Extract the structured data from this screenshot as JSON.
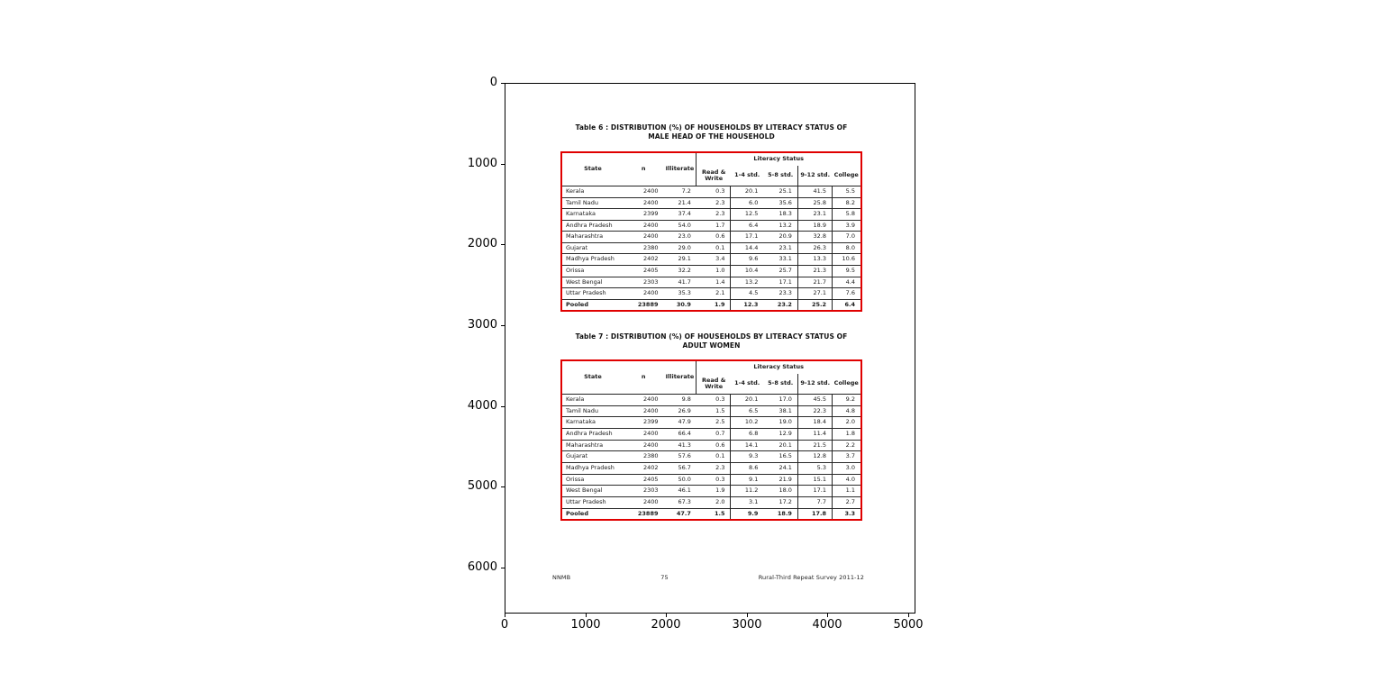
{
  "figure": {
    "x_ticks": [
      "0",
      "1000",
      "2000",
      "3000",
      "4000",
      "5000"
    ],
    "y_ticks": [
      "0",
      "1000",
      "2000",
      "3000",
      "4000",
      "5000",
      "6000"
    ],
    "table_border_color": "#e00000",
    "ink_color": "#1a1a1a"
  },
  "page": {
    "footer": {
      "left": "NNMB",
      "page_number": "75",
      "right": "Rural-Third Repeat Survey 2011-12"
    }
  },
  "tables": [
    {
      "title_line1": "Table 6 : DISTRIBUTION (%) OF HOUSEHOLDS BY LITERACY STATUS OF",
      "title_line2": "MALE HEAD OF THE HOUSEHOLD",
      "group_header": "Literacy Status",
      "columns": [
        "State",
        "n",
        "Illiterate",
        "Read & Write",
        "1-4 std.",
        "5-8 std.",
        "9-12 std.",
        "College"
      ],
      "rows": [
        {
          "cells": [
            "Kerala",
            "2400",
            "7.2",
            "0.3",
            "20.1",
            "25.1",
            "41.5",
            "5.5"
          ]
        },
        {
          "cells": [
            "Tamil Nadu",
            "2400",
            "21.4",
            "2.3",
            "6.0",
            "35.6",
            "25.8",
            "8.2"
          ]
        },
        {
          "cells": [
            "Karnataka",
            "2399",
            "37.4",
            "2.3",
            "12.5",
            "18.3",
            "23.1",
            "5.8"
          ]
        },
        {
          "cells": [
            "Andhra Pradesh",
            "2400",
            "54.0",
            "1.7",
            "6.4",
            "13.2",
            "18.9",
            "3.9"
          ]
        },
        {
          "cells": [
            "Maharashtra",
            "2400",
            "23.0",
            "0.6",
            "17.1",
            "20.9",
            "32.8",
            "7.0"
          ]
        },
        {
          "cells": [
            "Gujarat",
            "2380",
            "29.0",
            "0.1",
            "14.4",
            "23.1",
            "26.3",
            "8.0"
          ]
        },
        {
          "cells": [
            "Madhya Pradesh",
            "2402",
            "29.1",
            "3.4",
            "9.6",
            "33.1",
            "13.3",
            "10.6"
          ]
        },
        {
          "cells": [
            "Orissa",
            "2405",
            "32.2",
            "1.0",
            "10.4",
            "25.7",
            "21.3",
            "9.5"
          ]
        },
        {
          "cells": [
            "West Bengal",
            "2303",
            "41.7",
            "1.4",
            "13.2",
            "17.1",
            "21.7",
            "4.4"
          ]
        },
        {
          "cells": [
            "Uttar Pradesh",
            "2400",
            "35.3",
            "2.1",
            "4.5",
            "23.3",
            "27.1",
            "7.6"
          ]
        },
        {
          "cells": [
            "Pooled",
            "23889",
            "30.9",
            "1.9",
            "12.3",
            "23.2",
            "25.2",
            "6.4"
          ],
          "pooled": true
        }
      ]
    },
    {
      "title_line1": "Table 7 : DISTRIBUTION (%) OF HOUSEHOLDS BY LITERACY STATUS OF",
      "title_line2": "ADULT WOMEN",
      "group_header": "Literacy Status",
      "columns": [
        "State",
        "n",
        "Illiterate",
        "Read & Write",
        "1-4 std.",
        "5-8 std.",
        "9-12 std.",
        "College"
      ],
      "rows": [
        {
          "cells": [
            "Kerala",
            "2400",
            "9.8",
            "0.3",
            "20.1",
            "17.0",
            "45.5",
            "9.2"
          ]
        },
        {
          "cells": [
            "Tamil Nadu",
            "2400",
            "26.9",
            "1.5",
            "6.5",
            "38.1",
            "22.3",
            "4.8"
          ]
        },
        {
          "cells": [
            "Karnataka",
            "2399",
            "47.9",
            "2.5",
            "10.2",
            "19.0",
            "18.4",
            "2.0"
          ]
        },
        {
          "cells": [
            "Andhra Pradesh",
            "2400",
            "66.4",
            "0.7",
            "6.8",
            "12.9",
            "11.4",
            "1.8"
          ]
        },
        {
          "cells": [
            "Maharashtra",
            "2400",
            "41.3",
            "0.6",
            "14.1",
            "20.1",
            "21.5",
            "2.2"
          ]
        },
        {
          "cells": [
            "Gujarat",
            "2380",
            "57.6",
            "0.1",
            "9.3",
            "16.5",
            "12.8",
            "3.7"
          ]
        },
        {
          "cells": [
            "Madhya Pradesh",
            "2402",
            "56.7",
            "2.3",
            "8.6",
            "24.1",
            "5.3",
            "3.0"
          ]
        },
        {
          "cells": [
            "Orissa",
            "2405",
            "50.0",
            "0.3",
            "9.1",
            "21.9",
            "15.1",
            "4.0"
          ]
        },
        {
          "cells": [
            "West Bengal",
            "2303",
            "46.1",
            "1.9",
            "11.2",
            "18.0",
            "17.1",
            "1.1"
          ]
        },
        {
          "cells": [
            "Uttar Pradesh",
            "2400",
            "67.3",
            "2.0",
            "3.1",
            "17.2",
            "7.7",
            "2.7"
          ]
        },
        {
          "cells": [
            "Pooled",
            "23889",
            "47.7",
            "1.5",
            "9.9",
            "18.9",
            "17.8",
            "3.3"
          ],
          "pooled": true
        }
      ]
    }
  ]
}
